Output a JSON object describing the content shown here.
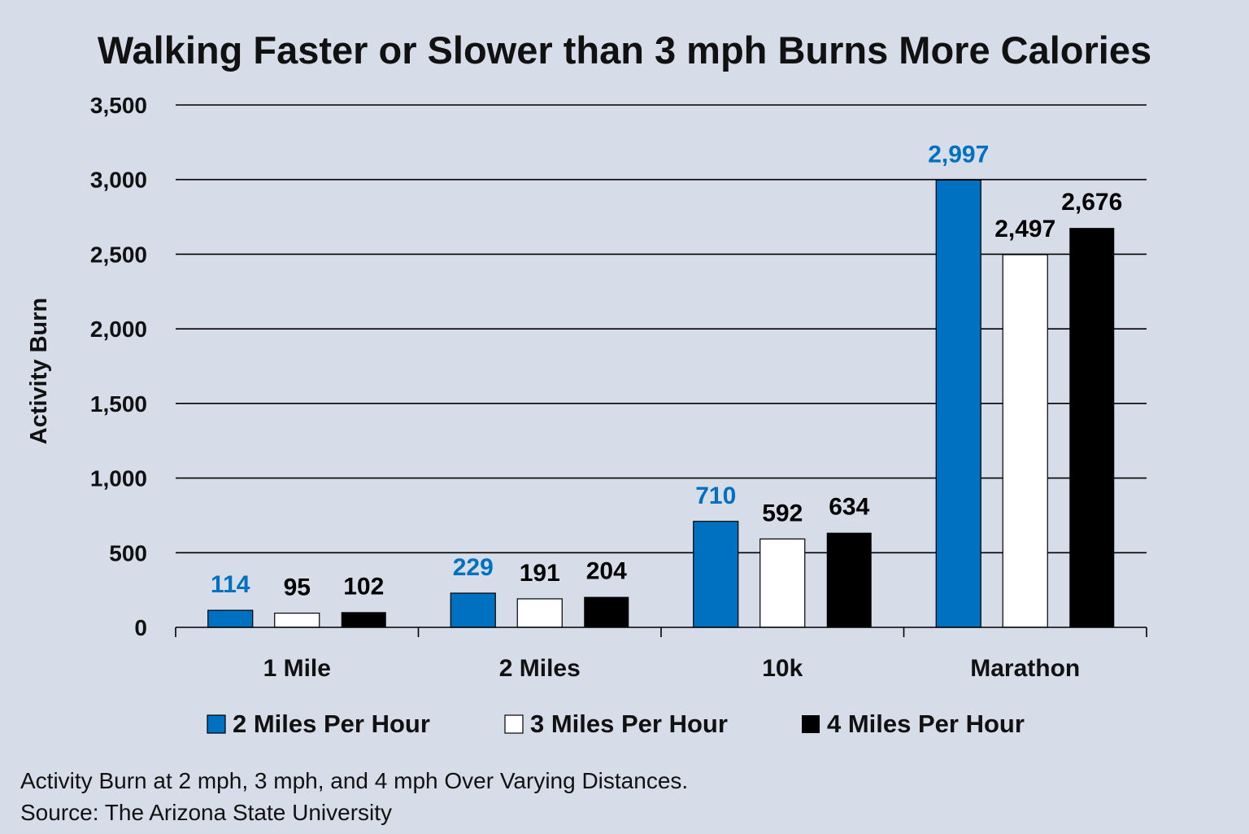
{
  "chart_data": {
    "type": "bar",
    "title": "Walking Faster or Slower than 3 mph Burns More Calories",
    "xlabel": "",
    "ylabel": "Activity Burn",
    "ylim": [
      0,
      3500
    ],
    "yticks": [
      0,
      500,
      1000,
      1500,
      2000,
      2500,
      3000,
      3500
    ],
    "ytick_labels": [
      "0",
      "500",
      "1,000",
      "1,500",
      "2,000",
      "2,500",
      "3,000",
      "3,500"
    ],
    "grid": true,
    "legend_position": "bottom",
    "categories": [
      "1 Mile",
      "2 Miles",
      "10k",
      "Marathon"
    ],
    "series": [
      {
        "name": "2 Miles Per Hour",
        "values": [
          114,
          229,
          710,
          2997
        ],
        "labels": [
          "114",
          "229",
          "710",
          "2,997"
        ],
        "color": "#0070c0",
        "label_color": "#0070c0"
      },
      {
        "name": "3 Miles Per Hour",
        "values": [
          95,
          191,
          592,
          2497
        ],
        "labels": [
          "95",
          "191",
          "592",
          "2,497"
        ],
        "color": "#ffffff",
        "label_color": "#000000"
      },
      {
        "name": "4 Miles Per Hour",
        "values": [
          102,
          204,
          634,
          2676
        ],
        "labels": [
          "102",
          "204",
          "634",
          "2,676"
        ],
        "color": "#000000",
        "label_color": "#000000"
      }
    ]
  },
  "caption": {
    "line1": "Activity Burn at 2 mph, 3 mph, and 4 mph Over Varying Distances.",
    "line2": "Source: The Arizona State University"
  },
  "colors": {
    "background": "#d6dde8",
    "accent": "#0070c0"
  }
}
